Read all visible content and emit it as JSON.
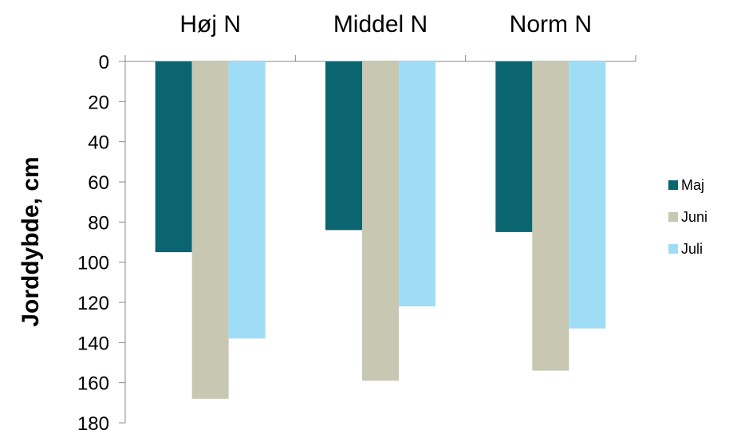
{
  "chart_data": {
    "type": "bar",
    "orientation": "vertical-inverted",
    "categories": [
      "Høj N",
      "Middel N",
      "Norm N"
    ],
    "series": [
      {
        "name": "Maj",
        "color": "#0B6570",
        "values": [
          95,
          84,
          85
        ]
      },
      {
        "name": "Juni",
        "color": "#C8C7B1",
        "values": [
          168,
          159,
          154
        ]
      },
      {
        "name": "Juli",
        "color": "#9FDDF7",
        "values": [
          138,
          122,
          133
        ]
      }
    ],
    "ylabel": "Jorddybde, cm",
    "ylim": [
      0,
      180
    ],
    "yticks": [
      0,
      20,
      40,
      60,
      80,
      100,
      120,
      140,
      160,
      180
    ],
    "x_axis_position": "top",
    "grid": false,
    "legend_position": "right"
  }
}
